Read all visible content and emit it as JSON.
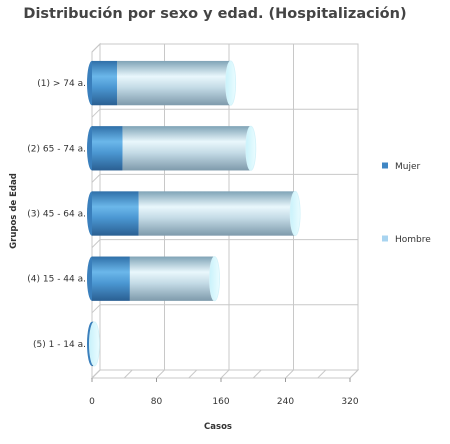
{
  "chart_data": {
    "type": "bar",
    "orientation": "horizontal",
    "stacked": true,
    "style": "3d-cylinder",
    "title": "Distribución por sexo y edad. (Hospitalización)",
    "xlabel": "Casos",
    "ylabel": "Grupos de Edad",
    "categories": [
      "(1) > 74 a.",
      "(2) 65 - 74 a.",
      "(3) 45 - 64 a.",
      "(4) 15 - 44 a.",
      "(5) 1 - 14 a."
    ],
    "series": [
      {
        "name": "Mujer",
        "values": [
          31,
          38,
          58,
          47,
          2
        ],
        "color": "#3f86c4"
      },
      {
        "name": "Hombre",
        "values": [
          141,
          159,
          194,
          105,
          1
        ],
        "color": "#a8d4f0"
      }
    ],
    "xlim": [
      0,
      320
    ],
    "xticks": [
      0,
      80,
      160,
      240,
      320
    ],
    "grid": true,
    "legend": "right"
  }
}
